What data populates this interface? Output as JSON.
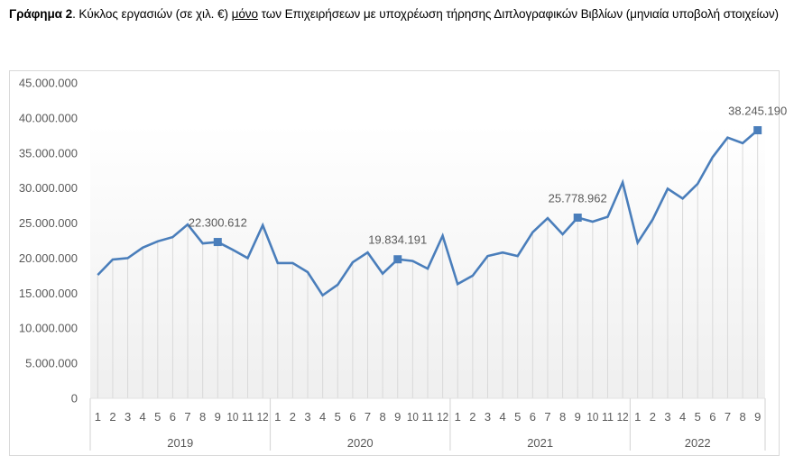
{
  "caption": {
    "prefix_bold": "Γράφημα 2",
    "text_before_underline": ". Κύκλος εργασιών (σε χιλ. €) ",
    "underlined": "μόνο",
    "text_after_underline": " των Επιχειρήσεων με υποχρέωση τήρησης Διπλογραφικών Βιβλίων (μηνιαία υποβολή στοιχείων)"
  },
  "colors": {
    "line": "#4a7ebb",
    "marker": "#4a7ebb",
    "text": "#595959",
    "droplines": "#d9d9d9",
    "border": "#d9d9d9"
  },
  "chart_data": {
    "type": "line",
    "title": "Κύκλος εργασιών (σε χιλ. €) μόνο των Επιχειρήσεων με υποχρέωση τήρησης Διπλογραφικών Βιβλίων (μηνιαία υποβολή στοιχείων)",
    "xlabel": "",
    "ylabel": "",
    "ylim": [
      0,
      45000000
    ],
    "yticks": [
      0,
      5000000,
      10000000,
      15000000,
      20000000,
      25000000,
      30000000,
      35000000,
      40000000,
      45000000
    ],
    "ytick_labels": [
      "0",
      "5.000.000",
      "10.000.000",
      "15.000.000",
      "20.000.000",
      "25.000.000",
      "30.000.000",
      "35.000.000",
      "40.000.000",
      "45.000.000"
    ],
    "grid": false,
    "drop_lines": true,
    "legend": "none",
    "x_groups": [
      {
        "year": "2019",
        "months": [
          "1",
          "2",
          "3",
          "4",
          "5",
          "6",
          "7",
          "8",
          "9",
          "10",
          "11",
          "12"
        ]
      },
      {
        "year": "2020",
        "months": [
          "1",
          "2",
          "3",
          "4",
          "5",
          "6",
          "7",
          "8",
          "9",
          "10",
          "11",
          "12"
        ]
      },
      {
        "year": "2021",
        "months": [
          "1",
          "2",
          "3",
          "4",
          "5",
          "6",
          "7",
          "8",
          "9",
          "10",
          "11",
          "12"
        ]
      },
      {
        "year": "2022",
        "months": [
          "1",
          "2",
          "3",
          "4",
          "5",
          "6",
          "7",
          "8",
          "9"
        ]
      }
    ],
    "series": [
      {
        "name": "Κύκλος εργασιών",
        "values": [
          17600000,
          19800000,
          20000000,
          21500000,
          22400000,
          23000000,
          24800000,
          22100000,
          22300612,
          21200000,
          20000000,
          24700000,
          19300000,
          19300000,
          18000000,
          14700000,
          16200000,
          19400000,
          20800000,
          17800000,
          19834191,
          19600000,
          18500000,
          23200000,
          16300000,
          17500000,
          20300000,
          20800000,
          20300000,
          23700000,
          25700000,
          23400000,
          25778962,
          25200000,
          25900000,
          30800000,
          22200000,
          25500000,
          29900000,
          28500000,
          30600000,
          34400000,
          37200000,
          36400000,
          38245190
        ]
      }
    ],
    "annotations": [
      {
        "index": 8,
        "label": "22.300.612"
      },
      {
        "index": 20,
        "label": "19.834.191"
      },
      {
        "index": 32,
        "label": "25.778.962"
      },
      {
        "index": 44,
        "label": "38.245.190"
      }
    ]
  }
}
